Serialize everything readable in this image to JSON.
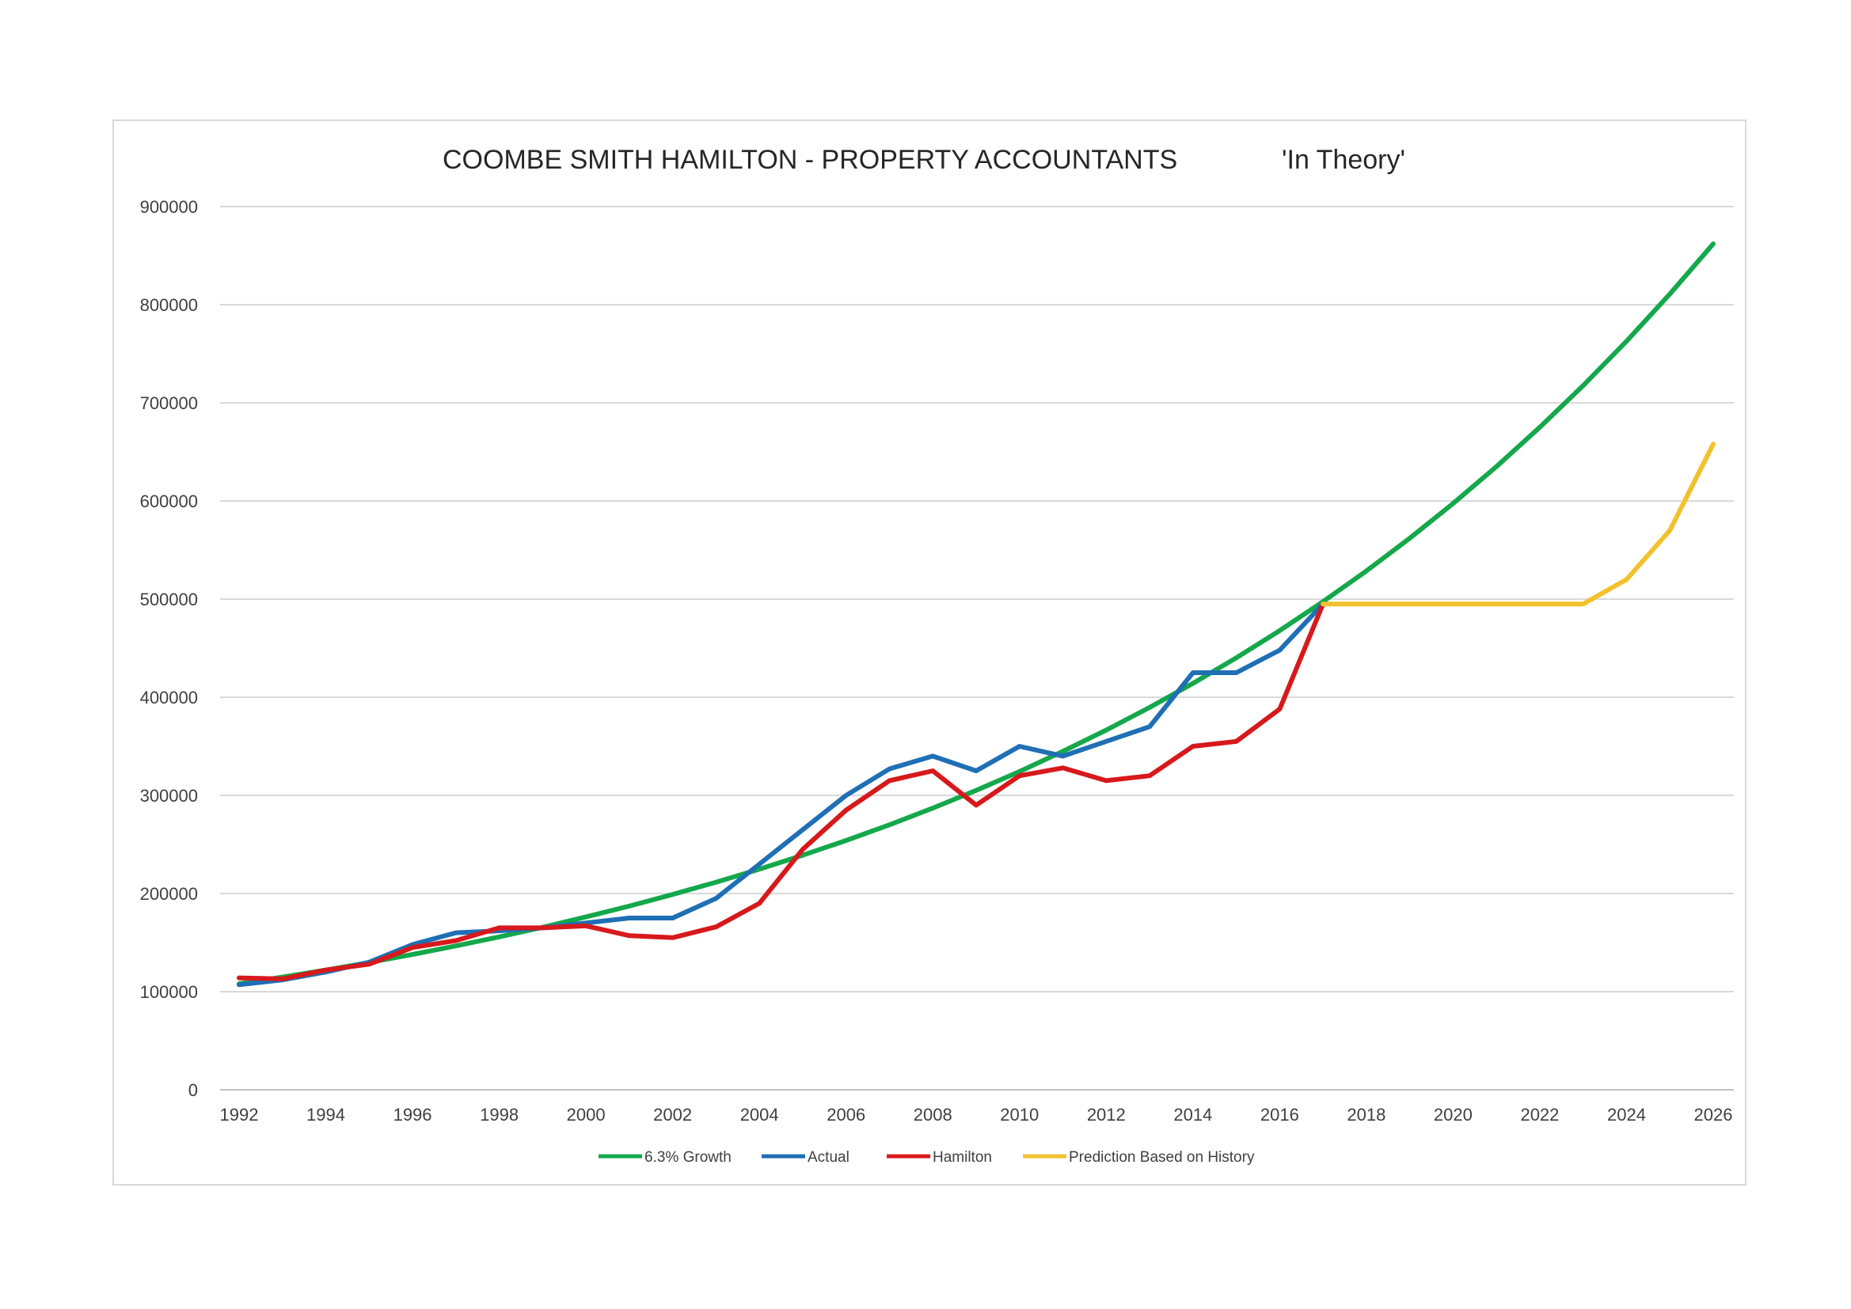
{
  "chart_data": {
    "type": "line",
    "title": "COOMBE SMITH HAMILTON - PROPERTY ACCOUNTANTS",
    "subtitle": "'In Theory'",
    "xlabel": "",
    "ylabel": "",
    "xlim": [
      1992,
      2026
    ],
    "ylim": [
      0,
      900000
    ],
    "x_ticks": [
      1992,
      1994,
      1996,
      1998,
      2000,
      2002,
      2004,
      2006,
      2008,
      2010,
      2012,
      2014,
      2016,
      2018,
      2020,
      2022,
      2024,
      2026
    ],
    "y_ticks": [
      0,
      100000,
      200000,
      300000,
      400000,
      500000,
      600000,
      700000,
      800000,
      900000
    ],
    "grid": "horizontal",
    "legend": "bottom",
    "series": [
      {
        "name": "6.3% Growth",
        "color": "#14a84b",
        "x": [
          1992,
          1993,
          1994,
          1995,
          1996,
          1997,
          1998,
          1999,
          2000,
          2001,
          2002,
          2003,
          2004,
          2005,
          2006,
          2007,
          2008,
          2009,
          2010,
          2011,
          2012,
          2013,
          2014,
          2015,
          2016,
          2017,
          2018,
          2019,
          2020,
          2021,
          2022,
          2023,
          2024,
          2025,
          2026
        ],
        "values": [
          108000,
          114800,
          122000,
          129700,
          137900,
          146600,
          155800,
          165600,
          176100,
          187200,
          199000,
          211500,
          224800,
          239000,
          254000,
          270000,
          287000,
          305100,
          324300,
          344800,
          366500,
          389600,
          414100,
          440200,
          467900,
          497400,
          528700,
          562000,
          597400,
          635100,
          675100,
          717600,
          762800,
          810900,
          862000
        ]
      },
      {
        "name": "Actual",
        "color": "#1f6fb5",
        "x": [
          1992,
          1993,
          1994,
          1995,
          1996,
          1997,
          1998,
          1999,
          2000,
          2001,
          2002,
          2003,
          2004,
          2005,
          2006,
          2007,
          2008,
          2009,
          2010,
          2011,
          2012,
          2013,
          2014,
          2015,
          2016,
          2017
        ],
        "values": [
          107000,
          112000,
          120000,
          130000,
          148000,
          160000,
          162000,
          165000,
          170000,
          175000,
          175000,
          195000,
          230000,
          265000,
          300000,
          327000,
          340000,
          325000,
          350000,
          340000,
          355000,
          370000,
          425000,
          425000,
          448000,
          495000
        ]
      },
      {
        "name": "Hamilton",
        "color": "#d7191c",
        "x": [
          1992,
          1993,
          1994,
          1995,
          1996,
          1997,
          1998,
          1999,
          2000,
          2001,
          2002,
          2003,
          2004,
          2005,
          2006,
          2007,
          2008,
          2009,
          2010,
          2011,
          2012,
          2013,
          2014,
          2015,
          2016,
          2017
        ],
        "values": [
          114000,
          113000,
          122000,
          128000,
          145000,
          152000,
          165000,
          165000,
          167000,
          157000,
          155000,
          166000,
          190000,
          245000,
          285000,
          315000,
          325000,
          290000,
          320000,
          328000,
          315000,
          320000,
          350000,
          355000,
          388000,
          495000
        ]
      },
      {
        "name": "Prediction Based on History",
        "color": "#f2c12e",
        "x": [
          2017,
          2018,
          2019,
          2020,
          2021,
          2022,
          2023,
          2024,
          2025,
          2026
        ],
        "values": [
          495000,
          495000,
          495000,
          495000,
          495000,
          495000,
          495000,
          520000,
          570000,
          658000
        ]
      }
    ]
  }
}
